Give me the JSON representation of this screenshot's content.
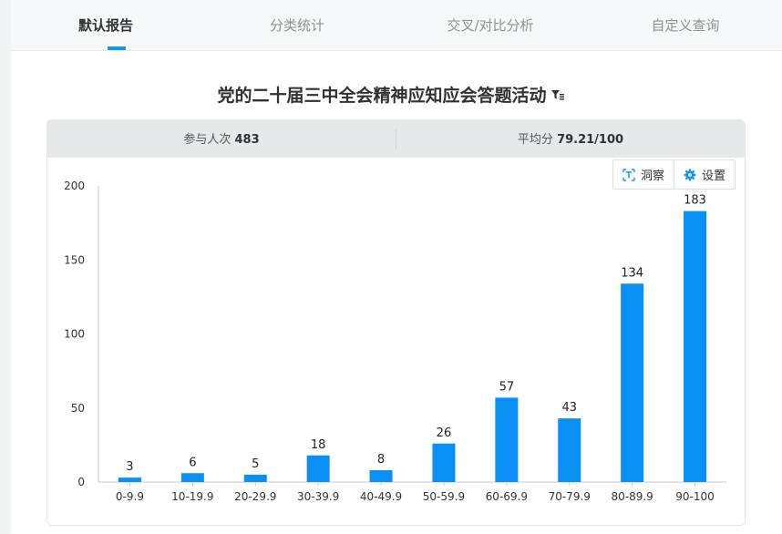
{
  "tabs": [
    {
      "label": "默认报告",
      "active": true
    },
    {
      "label": "分类统计",
      "active": false
    },
    {
      "label": "交叉/对比分析",
      "active": false
    },
    {
      "label": "自定义查询",
      "active": false
    }
  ],
  "report": {
    "title": "党的二十届三中全会精神应知应会答题活动",
    "filter_icon": "filter-icon"
  },
  "stats": {
    "participants_label": "参与人次",
    "participants_value": "483",
    "average_label": "平均分",
    "average_value": "79.21/100"
  },
  "tools": {
    "insight_label": "洞察",
    "insight_icon": "text-insight-icon",
    "settings_label": "设置",
    "settings_icon": "gear-icon"
  },
  "colors": {
    "accent": "#1296ef",
    "bar": "#0a8ff5"
  },
  "chart_data": {
    "type": "bar",
    "categories": [
      "0-9.9",
      "10-19.9",
      "20-29.9",
      "30-39.9",
      "40-49.9",
      "50-59.9",
      "60-69.9",
      "70-79.9",
      "80-89.9",
      "90-100"
    ],
    "values": [
      3,
      6,
      5,
      18,
      8,
      26,
      57,
      43,
      134,
      183
    ],
    "ylim": [
      0,
      200
    ],
    "yticks": [
      0,
      50,
      100,
      150,
      200
    ],
    "grid": false,
    "data_labels": true
  }
}
